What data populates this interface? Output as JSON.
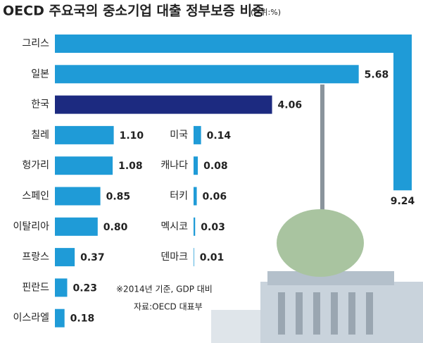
{
  "chart_data": {
    "type": "bar",
    "title": "OECD 주요국의 중소기업 대출 정부보증 비중",
    "unit": "(단위:%)",
    "categories": [
      "그리스",
      "일본",
      "한국",
      "칠레",
      "헝가리",
      "스페인",
      "이탈리아",
      "프랑스",
      "핀란드",
      "이스라엘",
      "미국",
      "캐나다",
      "터키",
      "멕시코",
      "덴마크"
    ],
    "values": [
      9.24,
      5.68,
      4.06,
      1.1,
      1.08,
      0.85,
      0.8,
      0.37,
      0.23,
      0.18,
      0.14,
      0.08,
      0.06,
      0.03,
      0.01
    ],
    "value_labels": [
      "9.24",
      "5.68",
      "4.06",
      "1.10",
      "1.08",
      "0.85",
      "0.80",
      "0.37",
      "0.23",
      "0.18",
      "0.14",
      "0.08",
      "0.06",
      "0.03",
      "0.01"
    ],
    "color": "#1f9bd7",
    "highlight": {
      "index": 2,
      "color": "#1c2a80"
    },
    "notes": [
      "※2014년 기준, GDP 대비",
      "자료:OECD 대표부"
    ]
  }
}
